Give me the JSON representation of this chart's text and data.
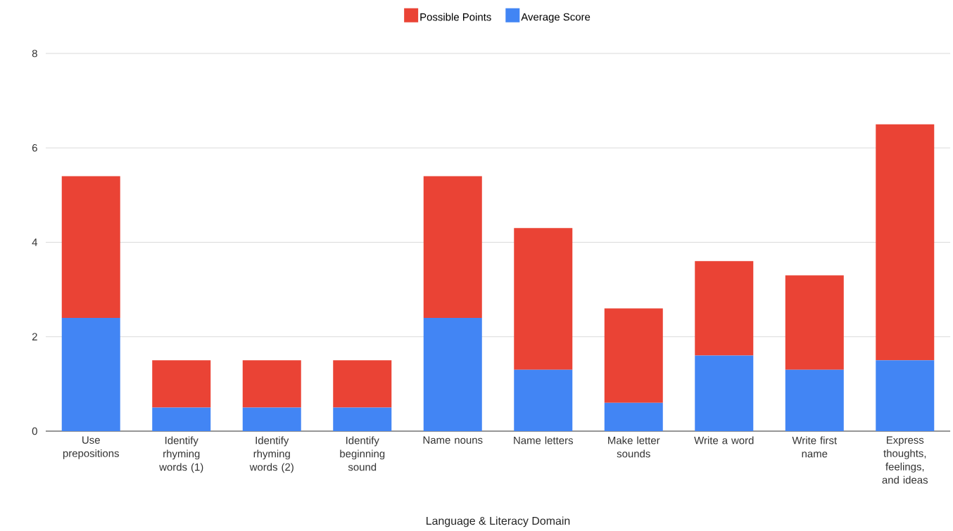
{
  "chart_data": {
    "type": "bar",
    "stacked": true,
    "xlabel": "Language & Literacy Domain",
    "categories": [
      "Use prepositions",
      "Identify rhyming words (1)",
      "Identify rhyming words (2)",
      "Identify beginning sound",
      "Name nouns",
      "Name letters",
      "Make letter sounds",
      "Write a word",
      "Write first name",
      "Express thoughts, feelings, and ideas"
    ],
    "series": [
      {
        "name": "Average Score",
        "color": "#4285f4",
        "values": [
          2.4,
          0.5,
          0.5,
          0.5,
          2.4,
          1.3,
          0.6,
          1.6,
          1.3,
          1.5
        ]
      },
      {
        "name": "Possible Points",
        "color": "#ea4335",
        "values": [
          3.0,
          1.0,
          1.0,
          1.0,
          3.0,
          3.0,
          2.0,
          2.0,
          2.0,
          5.0
        ]
      }
    ],
    "ylim": [
      0,
      8
    ],
    "yticks": [
      0,
      2,
      4,
      6,
      8
    ],
    "grid": "y",
    "legend": "top"
  }
}
